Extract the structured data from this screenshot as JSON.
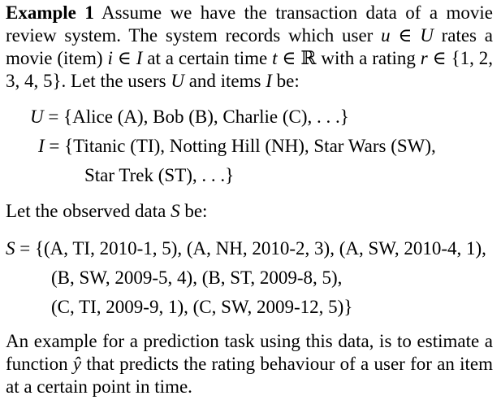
{
  "example": {
    "label": "Example 1",
    "intro_pre": "Assume we have the transaction data of a movie review system. The system records which user",
    "var_u": "u",
    "in1": " ∈ ",
    "set_U": "U",
    "rates_text": " rates a movie (item) ",
    "var_i": "i",
    "in2": " ∈ ",
    "set_I": "I",
    "at_time_text": " at a certain time ",
    "var_t": "t",
    "in3": " ∈ ℝ with a rating ",
    "var_r": "r",
    "rating_set": " ∈ {1, 2, 3, 4, 5}. Let the users ",
    "users_U": "U",
    "and_items": " and items ",
    "items_I": "I",
    "be": " be:"
  },
  "definitions": {
    "users_lhs": "U",
    "users_rhs": " = {Alice (A), Bob (B), Charlie (C), . . .}",
    "items_lhs": "I",
    "items_rhs_1": " = {Titanic (TI), Notting Hill (NH), Star Wars (SW),",
    "items_rhs_2": "Star Trek (ST), . . .}"
  },
  "observed": {
    "text_pre": "Let the observed data ",
    "var_S": "S",
    "text_post": " be:"
  },
  "data_set": {
    "lhs": "S",
    "line1": " = {(A, TI, 2010-1, 5), (A, NH, 2010-2, 3), (A, SW, 2010-4, 1),",
    "line2": "(B, SW, 2009-5, 4), (B, ST, 2009-8, 5),",
    "line3": "(C, TI, 2009-9, 1), (C, SW, 2009-12, 5)}"
  },
  "conclusion": {
    "text_pre": "An example for a prediction task using this data, is to estimate a function ",
    "var_yhat": "ŷ",
    "text_post": " that predicts the rating behaviour of a user for an item at a certain point in time."
  }
}
